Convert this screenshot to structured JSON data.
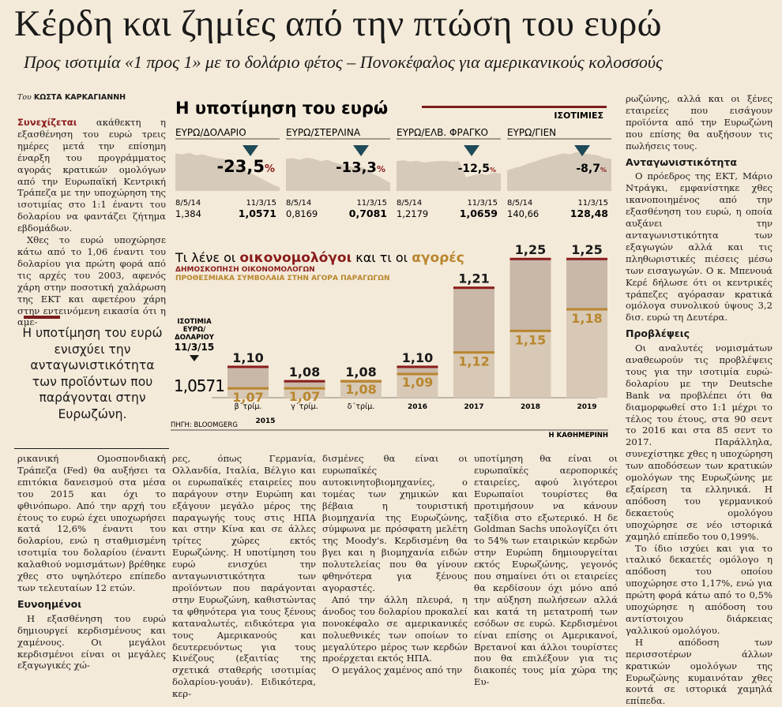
{
  "headline": "Κέρδη και ζημίες από την πτώση του ευρώ",
  "subheadline": "Προς ισοτιμία «1 προς 1» με το δολάριο φέτος – Πονοκέφαλος για αμερικανικούς κολοσσούς",
  "byline": {
    "prefix": "Του",
    "name": "ΚΩΣΤΑ ΚΑΡΚΑΓΙΑΝΝΗ"
  },
  "col1": {
    "lead": "Συνεχίζεται",
    "p1": "ακάθεκτη η εξασθένηση του ευρώ τρεις ημέρες μετά την επίσημη έναρξη του προγράμματος αγοράς κρατικών ομολόγων από την Ευρωπαϊκή Κεντρική Τράπεζα με την υποχώρηση της ισοτιμίας στο 1:1 έναντι του δολαρίου να φαντάζει ζήτημα εβδομάδων.",
    "p2": "Χθες το ευρώ υποχώρησε κάτω από το 1,06 έναντι του δολαρίου για πρώτη φορά από τις αρχές του 2003, αφενός χάρη στην ποσοτική χαλάρωση της ΕΚΤ και αφετέρου χάρη στην εντεινόμενη εικασία ότι η αμε-"
  },
  "pullquote": "Η υποτίμηση του ευρώ ενισχύει την ανταγωνιστικότητα των προϊόντων που παράγονται στην Ευρωζώνη.",
  "col1b": {
    "p1": "ρικανική Ομοσπονδιακή Τράπεζα (Fed) θα αυξήσει τα επιτόκια δανεισμού στα μέσα του 2015 και όχι το φθινόπωρο. Από την αρχή του έτους το ευρώ έχει υποχωρήσει κατά 12,6% έναντι του δολαρίου, ενώ η σταθμισμένη ισοτιμία του δολαρίου (έναντι καλαθιού νομισμάτων) βρέθηκε χθες στο υψηλότερο επίπεδο των τελευταίων 12 ετών.",
    "h": "Ευνοημένοι",
    "p2": "Η εξασθένηση του ευρώ δημιουργεί κερδισμένους και χαμένους. Οι μεγάλοι κερδισμένοι είναι οι μεγάλες εξαγωγικές χώ-"
  },
  "col2": "ρες, όπως Γερμανία, Ολλανδία, Ιταλία, Βέλγιο και οι ευρωπαϊκές εταιρείες που παράγουν στην Ευρώπη και εξάγουν μεγάλο μέρος της παραγωγής τους στις ΗΠΑ και στην Κίνα και σε άλλες τρίτες χώρες εκτός Ευρωζώνης. Η υποτίμηση του ευρώ ενισχύει την ανταγωνιστικότητα των προϊόντων που παράγονται στην Ευρωζώνη, καθιστώντας τα φθηνότερα για τους ξένους καταναλωτές, ειδικότερα για τους Αμερικανούς και δευτερευόντως για τους Κινέζους (εξαιτίας της σχετικά σταθερής ισοτιμίας δολαρίου-γουάν). Ειδικότερα, κερ-",
  "col3": {
    "p1": "δισμένες θα είναι οι ευρωπαϊκές αυτοκινητοβιομηχανίες, ο τομέας των χημικών και βέβαια η τουριστική βιομηχανία της Ευρωζώνης, σύμφωνα με πρόσφατη μελέτη της Moody's. Κερδισμένη θα βγει και η βιομηχανία ειδών πολυτελείας που θα γίνουν φθηνότερα για ξένους αγοραστές.",
    "p2": "Από την άλλη πλευρά, η άνοδος του δολαρίου προκαλεί πονοκέφαλο σε αμερικανικές πολυεθνικές των οποίων το μεγαλύτερο μέρος των κερδών προέρχεται εκτός ΗΠΑ.",
    "p3": "Ο μεγάλος χαμένος από την"
  },
  "col4": "υποτίμηση θα είναι οι ευρωπαϊκές αεροπορικές εταιρείες, αφού λιγότεροι Ευρωπαίοι τουρίστες θα προτιμήσουν να κάνουν ταξίδια στο εξωτερικό. Η δε Goldman Sachs υπολογίζει ότι το 54% των εταιρικών κερδών στην Ευρώπη δημιουργείται εκτός Ευρωζώνης, γεγονός που σημαίνει ότι οι εταιρείες θα κερδίσουν όχι μόνο από την αύξηση πωλήσεων αλλά και κατά τη μετατροπή των εσόδων σε ευρώ. Κερδισμένοι είναι επίσης οι Αμερικανοί, Βρετανοί και άλλοι τουρίστες που θα επιλέξουν για τις διακοπές τους μία χώρα της Ευ-",
  "col5": {
    "p0": "ρωζώνης, αλλά και οι ξένες εταιρείες που εισάγουν προϊόντα από την Ευρωζώνη που επίσης θα αυξήσουν τις πωλήσεις τους.",
    "h1": "Ανταγωνιστικότητα",
    "p1": "Ο πρόεδρος της ΕΚΤ, Μάριο Ντράγκι, εμφανίστηκε χθες ικανοποιημένος από την εξασθένηση του ευρώ, η οποία αυξάνει την ανταγωνιστικότητα των εξαγωγών αλλά και τις πληθωριστικές πιέσεις μέσω των εισαγωγών. Ο κ. Μπενουά Κερέ δήλωσε ότι οι κεντρικές τράπεζες αγόρασαν κρατικά ομόλογα συνολικού ύψους 3,2 δισ. ευρώ τη Δευτέρα.",
    "h2": "Προβλέψεις",
    "p2": "Οι αναλυτές νομισμάτων αναθεωρούν τις προβλέψεις τους για την ισοτιμία ευρώ-δολαρίου με την Deutsche Bank να προβλέπει ότι θα διαμορφωθεί στο 1:1 μέχρι το τέλος του έτους, στα 90 σεντ το 2016 και στα 85 σεντ το 2017. Παράλληλα, συνεχίστηκε χθες η υποχώρηση των αποδόσεων των κρατικών ομολόγων της Ευρωζώνης με εξαίρεση τα ελληνικά. Η απόδοση του γερμανικού δεκαετούς ομολόγου υποχώρησε σε νέο ιστορικά χαμηλό επίπεδο του 0,199%.",
    "p3": "Το ίδιο ισχύει και για το ιταλικό δεκαετές ομόλογο η απόδοση του οποίου υποχώρησε στο 1,17%, ενώ για πρώτη φορά κάτω από το 0,5% υποχώρησε η απόδοση του αντίστοιχου διάρκειας γαλλικού ομολόγου.",
    "p4": "Η απόδοση των περισσοτέρων άλλων κρατικών ομολόγων της Ευρωζώνης κυμαινόταν χθες κοντά σε ιστορικά χαμηλά επίπεδα."
  },
  "graphic": {
    "title": "Η υποτίμηση του ευρώ",
    "panel_header": "ΙΣΟΤΙΜΙΕΣ",
    "colors": {
      "accent": "#7a1e1e",
      "econ": "#8a1c1c",
      "market": "#b8862e",
      "panel": "#d6cbbb",
      "bar": "#c9b8a8",
      "arrow": "#1f4a58"
    },
    "panels": [
      {
        "label": "ΕΥΡΩ/ΔΟΛΑΡΙΟ",
        "change": "-23,5",
        "pct": "%",
        "start_date": "8/5/14",
        "end_date": "11/3/15",
        "start": "1,384",
        "end": "1,0571"
      },
      {
        "label": "ΕΥΡΩ/ΣΤΕΡΛΙΝΑ",
        "change": "-13,3",
        "pct": "%",
        "start_date": "8/5/14",
        "end_date": "11/3/15",
        "start": "0,8169",
        "end": "0,7081"
      },
      {
        "label": "ΕΥΡΩ/ΕΛΒ. ΦΡΑΓΚΟ",
        "change": "-12,5",
        "pct": "%",
        "start_date": "8/5/14",
        "end_date": "11/3/15",
        "start": "1,2179",
        "end": "1,0659"
      },
      {
        "label": "ΕΥΡΩ/ΓΙΕΝ",
        "change": "-8,7",
        "pct": "%",
        "start_date": "8/5/14",
        "end_date": "11/3/15",
        "start": "140,66",
        "end": "128,48"
      }
    ],
    "forecast_title": {
      "pre": "Τι λένε οι",
      "econ": "οικονομολόγοι",
      "mid": "και τι οι",
      "market": "αγορές"
    },
    "legend_econ": "ΔΗΜΟΣΚΟΠΗΣΗ ΟΙΚΟΝΟΜΟΛΟΓΩΝ",
    "legend_market": "ΠΡΟΘΕΣΜΙΑΚΑ ΣΥΜΒΟΛΑΙΑ ΣΤΗΝ ΑΓΟΡΑ ΠΑΡΑΓΩΓΩΝ",
    "current_label": [
      "ΙΣΟΤΙΜΙΑ",
      "ΕΥΡΩ/",
      "ΔΟΛΑΡΙΟΥ",
      "11/3/15"
    ],
    "current_value": "1,0571",
    "year_2015": "2015",
    "source": "ΠΗΓΗ: BLOOMGERG",
    "credit": "Η ΚΑΘΗΜΕΡΙΝΗ"
  },
  "chart_data": {
    "type": "bar",
    "categories": [
      "β΄τρίμ.",
      "γ΄τρίμ.",
      "δ΄τρίμ.",
      "2016",
      "2017",
      "2018",
      "2019"
    ],
    "series": [
      {
        "name": "ΔΗΜΟΣΚΟΠΗΣΗ ΟΙΚΟΝΟΜΟΛΟΓΩΝ",
        "values": [
          1.1,
          1.08,
          1.08,
          1.1,
          1.21,
          1.25,
          1.25
        ],
        "labels": [
          "1,10",
          "1,08",
          "1,08",
          "1,10",
          "1,21",
          "1,25",
          "1,25"
        ]
      },
      {
        "name": "ΠΡΟΘΕΣΜΙΑΚΑ ΣΥΜΒΟΛΑΙΑ ΣΤΗΝ ΑΓΟΡΑ ΠΑΡΑΓΩΓΩΝ",
        "values": [
          1.07,
          1.07,
          1.08,
          1.09,
          1.12,
          1.15,
          1.18
        ],
        "labels": [
          "1,07",
          "1,07",
          "1,08",
          "1,09",
          "1,12",
          "1,15",
          "1,18"
        ]
      }
    ],
    "baseline": 1.0571,
    "ylim": [
      1.0571,
      1.27
    ]
  }
}
